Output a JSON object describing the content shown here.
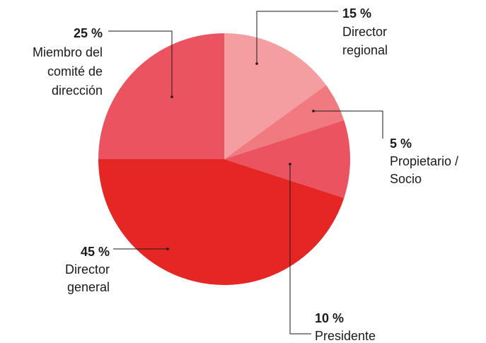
{
  "chart_data": {
    "type": "pie",
    "categories": [
      [
        "Director",
        "regional"
      ],
      [
        "Propietario /",
        "Socio"
      ],
      [
        "Presidente"
      ],
      [
        "Director",
        "general"
      ],
      [
        "Miembro del",
        "comité de",
        "dirección"
      ]
    ],
    "values": [
      15,
      5,
      10,
      45,
      25
    ],
    "value_labels": [
      "15 %",
      "5 %",
      "10 %",
      "45 %",
      "25 %"
    ],
    "colors": [
      "#f49ea2",
      "#f07a80",
      "#ec5360",
      "#e52624",
      "#ec5360"
    ]
  }
}
